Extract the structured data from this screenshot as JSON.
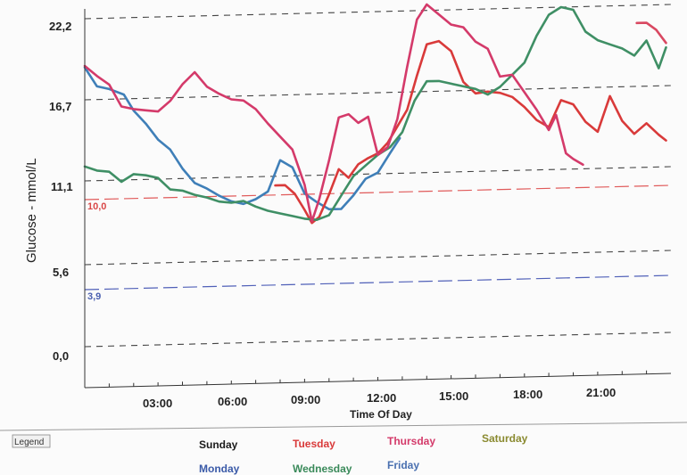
{
  "chart_data": {
    "type": "line",
    "xlabel": "Time Of Day",
    "ylabel": "Glucose - mmol/L",
    "xlim": [
      0,
      24
    ],
    "ylim": [
      0,
      24
    ],
    "x_ticks": [
      "03:00",
      "06:00",
      "09:00",
      "12:00",
      "15:00",
      "18:00",
      "21:00"
    ],
    "y_ticks": [
      "22,2",
      "16,7",
      "11,1",
      "5,6",
      "0,0"
    ],
    "thresholds": [
      {
        "label": "10,0",
        "value": 10.0,
        "color": "#d94848"
      },
      {
        "label": "3,9",
        "value": 3.9,
        "color": "#4a5fb0"
      }
    ],
    "legend": {
      "title": "Legend",
      "items": [
        {
          "name": "Sunday",
          "color": "#1a1a1a"
        },
        {
          "name": "Monday",
          "color": "#3a5aa8"
        },
        {
          "name": "Tuesday",
          "color": "#d93a3a"
        },
        {
          "name": "Wednesday",
          "color": "#3a8a5a"
        },
        {
          "name": "Thursday",
          "color": "#d43a6a"
        },
        {
          "name": "Friday",
          "color": "#4a70b0"
        },
        {
          "name": "Saturday",
          "color": "#8a8a30"
        }
      ]
    },
    "series": [
      {
        "name": "Monday",
        "color": "#3f7fb8",
        "points": [
          [
            0,
            18.9
          ],
          [
            0.5,
            17.6
          ],
          [
            1,
            17.4
          ],
          [
            1.6,
            17.0
          ],
          [
            2,
            15.9
          ],
          [
            2.5,
            15.0
          ],
          [
            3,
            13.9
          ],
          [
            3.5,
            13.2
          ],
          [
            4,
            11.9
          ],
          [
            4.5,
            10.9
          ],
          [
            5,
            10.5
          ],
          [
            5.5,
            10.0
          ],
          [
            6,
            9.6
          ],
          [
            6.5,
            9.4
          ],
          [
            7,
            9.7
          ],
          [
            7.5,
            10.2
          ],
          [
            8,
            12.3
          ],
          [
            8.5,
            11.8
          ],
          [
            9,
            10.0
          ],
          [
            9.5,
            9.4
          ],
          [
            10,
            8.9
          ],
          [
            10.5,
            8.9
          ],
          [
            11,
            9.8
          ],
          [
            11.5,
            10.9
          ],
          [
            12,
            11.3
          ],
          [
            12.5,
            12.6
          ],
          [
            12.9,
            13.6
          ]
        ]
      },
      {
        "name": "Tuesday",
        "color": "#d93a3a",
        "points": [
          [
            7.8,
            10.6
          ],
          [
            8.2,
            10.6
          ],
          [
            8.6,
            10.0
          ],
          [
            9,
            8.9
          ],
          [
            9.3,
            8.0
          ],
          [
            9.6,
            8.4
          ],
          [
            10,
            9.9
          ],
          [
            10.4,
            11.6
          ],
          [
            10.8,
            11.0
          ],
          [
            11.2,
            11.9
          ],
          [
            11.6,
            12.3
          ],
          [
            12,
            12.6
          ],
          [
            12.4,
            13.3
          ],
          [
            12.8,
            14.4
          ],
          [
            13.2,
            15.5
          ],
          [
            13.6,
            17.8
          ],
          [
            14,
            19.9
          ],
          [
            14.5,
            20.1
          ],
          [
            15,
            19.4
          ],
          [
            15.5,
            17.3
          ],
          [
            16,
            16.5
          ],
          [
            16.5,
            16.6
          ],
          [
            17,
            16.5
          ],
          [
            17.5,
            16.2
          ],
          [
            18,
            15.5
          ],
          [
            18.5,
            14.6
          ],
          [
            19,
            14.1
          ],
          [
            19.5,
            15.9
          ],
          [
            20,
            15.6
          ],
          [
            20.5,
            14.4
          ],
          [
            21,
            13.7
          ],
          [
            21.5,
            16.1
          ],
          [
            22,
            14.4
          ],
          [
            22.5,
            13.5
          ],
          [
            23,
            14.2
          ],
          [
            23.5,
            13.4
          ],
          [
            23.8,
            13.0
          ]
        ]
      },
      {
        "name": "Wednesday",
        "color": "#3f8f65",
        "points": [
          [
            0,
            12.2
          ],
          [
            0.5,
            11.9
          ],
          [
            1,
            11.8
          ],
          [
            1.5,
            11.1
          ],
          [
            2,
            11.6
          ],
          [
            2.5,
            11.5
          ],
          [
            3,
            11.3
          ],
          [
            3.5,
            10.5
          ],
          [
            4,
            10.4
          ],
          [
            4.5,
            10.1
          ],
          [
            5,
            9.9
          ],
          [
            5.5,
            9.6
          ],
          [
            6,
            9.5
          ],
          [
            6.5,
            9.6
          ],
          [
            7,
            9.2
          ],
          [
            7.5,
            8.9
          ],
          [
            8,
            8.7
          ],
          [
            8.5,
            8.5
          ],
          [
            9,
            8.3
          ],
          [
            9.5,
            8.2
          ],
          [
            10,
            8.5
          ],
          [
            10.5,
            9.8
          ],
          [
            11,
            11.1
          ],
          [
            11.5,
            11.8
          ],
          [
            12,
            12.5
          ],
          [
            12.5,
            13.0
          ],
          [
            13,
            14.0
          ],
          [
            13.5,
            16.1
          ],
          [
            14,
            17.4
          ],
          [
            14.5,
            17.4
          ],
          [
            15,
            17.2
          ],
          [
            15.5,
            17.0
          ],
          [
            16,
            16.8
          ],
          [
            16.5,
            16.4
          ],
          [
            17,
            16.9
          ],
          [
            17.5,
            17.7
          ],
          [
            18,
            18.5
          ],
          [
            18.5,
            20.3
          ],
          [
            19,
            21.7
          ],
          [
            19.5,
            22.2
          ],
          [
            20,
            22.0
          ],
          [
            20.5,
            20.5
          ],
          [
            21,
            19.9
          ],
          [
            21.5,
            19.6
          ],
          [
            22,
            19.3
          ],
          [
            22.5,
            18.8
          ],
          [
            23,
            19.8
          ],
          [
            23.5,
            17.9
          ],
          [
            23.8,
            19.3
          ]
        ]
      },
      {
        "name": "Thursday",
        "color": "#d43a6a",
        "points": [
          [
            0,
            19.0
          ],
          [
            0.5,
            18.3
          ],
          [
            1,
            17.7
          ],
          [
            1.5,
            16.2
          ],
          [
            2,
            16.0
          ],
          [
            2.5,
            15.9
          ],
          [
            3,
            15.8
          ],
          [
            3.5,
            16.5
          ],
          [
            4,
            17.6
          ],
          [
            4.5,
            18.4
          ],
          [
            5,
            17.4
          ],
          [
            5.5,
            16.9
          ],
          [
            6,
            16.5
          ],
          [
            6.5,
            16.4
          ],
          [
            7,
            15.8
          ],
          [
            7.5,
            14.8
          ],
          [
            8,
            13.9
          ],
          [
            8.5,
            13.0
          ],
          [
            9,
            10.6
          ],
          [
            9.3,
            8.1
          ],
          [
            9.6,
            9.6
          ],
          [
            10,
            12.2
          ],
          [
            10.4,
            15.1
          ],
          [
            10.8,
            15.3
          ],
          [
            11.2,
            14.7
          ],
          [
            11.6,
            15.1
          ],
          [
            12,
            12.5
          ],
          [
            12.4,
            13.0
          ],
          [
            12.8,
            14.9
          ],
          [
            13.2,
            18.4
          ],
          [
            13.6,
            21.6
          ],
          [
            14,
            22.6
          ],
          [
            14.5,
            21.9
          ],
          [
            15,
            21.2
          ],
          [
            15.5,
            21.0
          ],
          [
            16,
            20.0
          ],
          [
            16.5,
            19.5
          ],
          [
            17,
            17.6
          ],
          [
            17.5,
            17.7
          ],
          [
            18,
            16.5
          ],
          [
            18.5,
            15.3
          ],
          [
            19,
            13.9
          ],
          [
            19.3,
            14.9
          ],
          [
            19.7,
            12.3
          ],
          [
            20,
            11.9
          ],
          [
            20.4,
            11.5
          ]
        ]
      },
      {
        "name": "Saturday",
        "color": "#d94861",
        "points": [
          [
            22.6,
            21.0
          ],
          [
            23,
            21.0
          ],
          [
            23.4,
            20.5
          ],
          [
            23.8,
            19.6
          ]
        ]
      }
    ]
  }
}
